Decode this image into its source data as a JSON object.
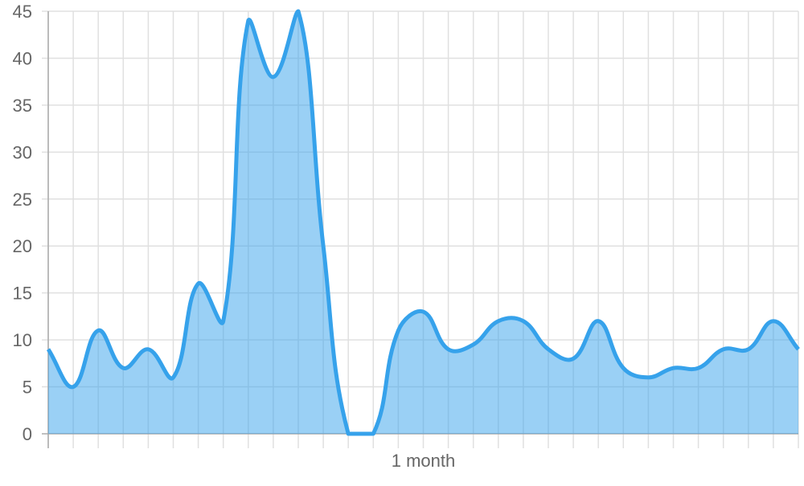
{
  "chart_data": {
    "type": "area",
    "title": "",
    "xlabel": "",
    "ylabel": "",
    "ylim": [
      0,
      45
    ],
    "y_ticks": [
      "0",
      "5",
      "10",
      "15",
      "20",
      "25",
      "30",
      "35",
      "40",
      "45"
    ],
    "x_tick_label": "1 month",
    "x_tick_label_index": 15,
    "grid": true,
    "legend": "none",
    "colors": {
      "line": "#36A2EB",
      "fill": "rgba(54,162,235,0.5)",
      "grid": "#e0e0e0",
      "text": "#666666"
    },
    "values": [
      9,
      5,
      11,
      7,
      9,
      6,
      16,
      12,
      44,
      38,
      45,
      20,
      0,
      0,
      11,
      13,
      9,
      9.5,
      12,
      12,
      9,
      8,
      12,
      7,
      6,
      7,
      7,
      9,
      9,
      12,
      9
    ]
  }
}
